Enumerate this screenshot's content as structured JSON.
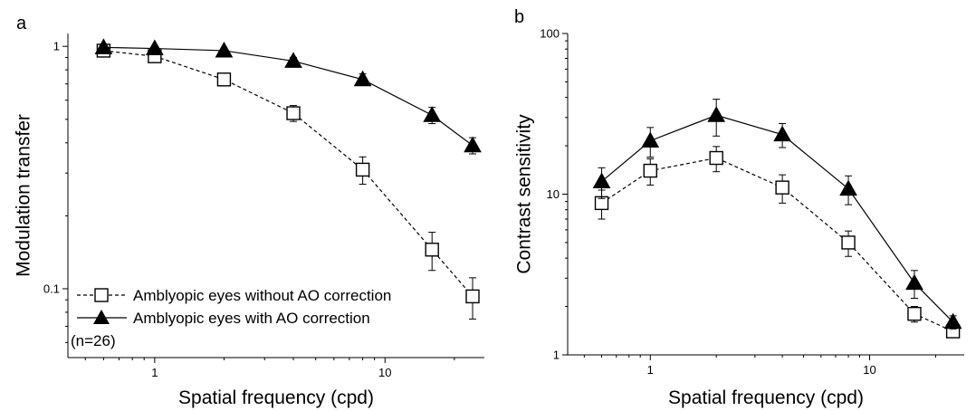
{
  "chart_data": [
    {
      "panel_label": "a",
      "type": "line",
      "xlabel": "Spatial frequency (cpd)",
      "ylabel": "Modulation transfer",
      "x_scale": "log",
      "y_scale": "log",
      "xlim": [
        0.42,
        27
      ],
      "ylim": [
        0.052,
        1.13
      ],
      "x_ticks": [
        {
          "value": 1,
          "label": "1"
        },
        {
          "value": 10,
          "label": "10"
        }
      ],
      "y_ticks": [
        {
          "value": 0.1,
          "label": "0.1"
        },
        {
          "value": 1,
          "label": "1"
        }
      ],
      "series": [
        {
          "name": "Amblyopic eyes without AO correction",
          "marker": "open-square",
          "line": "dashed",
          "x": [
            0.6,
            1,
            2,
            4,
            8,
            16,
            24
          ],
          "y": [
            0.96,
            0.91,
            0.73,
            0.53,
            0.31,
            0.145,
            0.093
          ],
          "err": [
            0.02,
            0.03,
            0.03,
            0.04,
            0.04,
            0.026,
            0.018
          ]
        },
        {
          "name": "Amblyopic eyes with AO correction",
          "marker": "filled-triangle",
          "line": "solid",
          "x": [
            0.6,
            1,
            2,
            4,
            8,
            16,
            24
          ],
          "y": [
            0.99,
            0.98,
            0.96,
            0.87,
            0.73,
            0.52,
            0.39
          ],
          "err": [
            0.01,
            0.01,
            0.02,
            0.03,
            0.04,
            0.04,
            0.03
          ]
        }
      ],
      "legend": {
        "placement": "bottom-left",
        "note": "(n=26)"
      }
    },
    {
      "panel_label": "b",
      "type": "line",
      "xlabel": "Spatial frequency (cpd)",
      "ylabel": "Contrast sensitivity",
      "x_scale": "log",
      "y_scale": "log",
      "xlim": [
        0.42,
        27
      ],
      "ylim": [
        1,
        100
      ],
      "x_ticks": [
        {
          "value": 1,
          "label": "1"
        },
        {
          "value": 10,
          "label": "10"
        }
      ],
      "y_ticks": [
        {
          "value": 1,
          "label": "1"
        },
        {
          "value": 10,
          "label": "10"
        },
        {
          "value": 100,
          "label": "100"
        }
      ],
      "series": [
        {
          "marker": "open-square",
          "line": "dashed",
          "x": [
            0.6,
            1,
            2,
            4,
            8,
            16,
            24
          ],
          "y": [
            8.8,
            14,
            16.8,
            11,
            5,
            1.8,
            1.4
          ],
          "err": [
            1.8,
            2.6,
            3.0,
            2.2,
            0.9,
            0.2,
            0.12
          ]
        },
        {
          "marker": "filled-triangle",
          "line": "solid",
          "x": [
            0.6,
            1,
            2,
            4,
            8,
            16,
            24
          ],
          "y": [
            12,
            21.5,
            31,
            23.5,
            10.8,
            2.8,
            1.6
          ],
          "err": [
            2.6,
            4.5,
            8.0,
            4.0,
            2.2,
            0.55,
            0.15
          ]
        }
      ]
    }
  ]
}
